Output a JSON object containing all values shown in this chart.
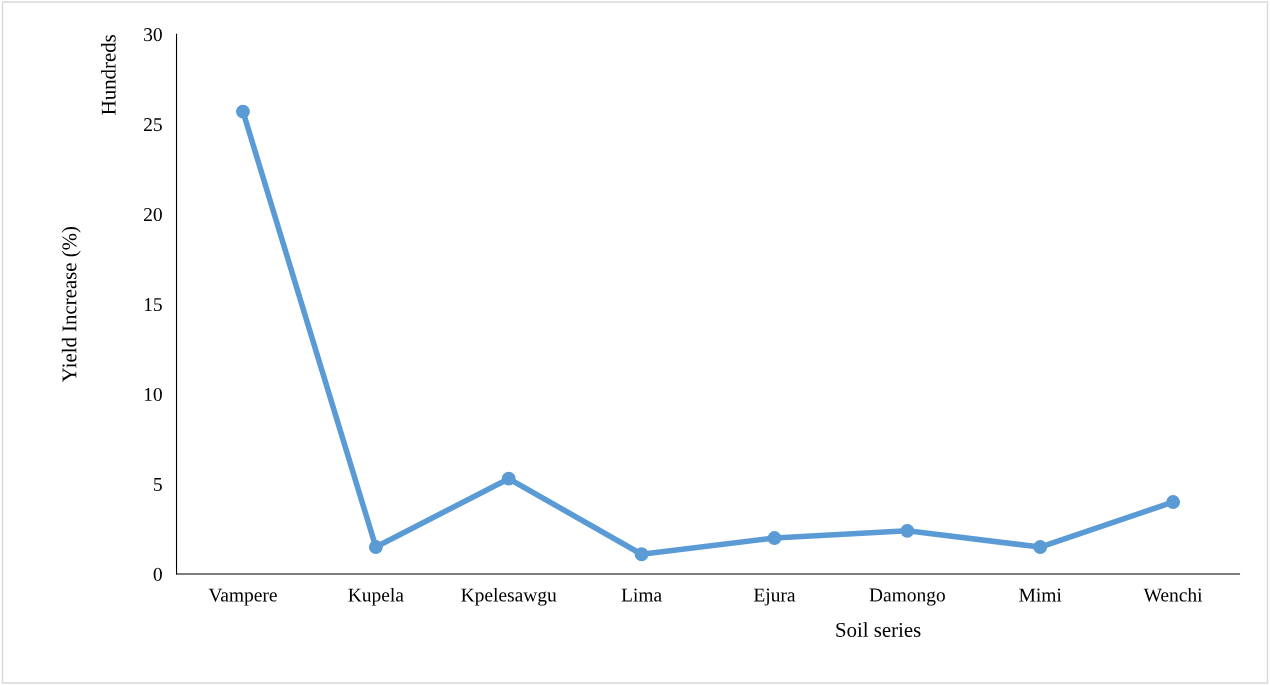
{
  "chart_data": {
    "type": "line",
    "categories": [
      "Vampere",
      "Kupela",
      "Kpelesawgu",
      "Lima",
      "Ejura",
      "Damongo",
      "Mimi",
      "Wenchi"
    ],
    "series": [
      {
        "color": "#5b9bd5",
        "values": [
          25.7,
          1.5,
          5.3,
          1.1,
          2.0,
          2.4,
          1.5,
          4.0
        ]
      }
    ],
    "xlabel": "Soil series",
    "ylabel": "Yield Increase (%)",
    "annotations": [
      "Hundreds"
    ],
    "ylim": [
      0,
      30
    ],
    "yticks": [
      0,
      5,
      10,
      15,
      20,
      25,
      30
    ],
    "marker": "circle",
    "line_style": "solid",
    "grid": false,
    "legend": false
  }
}
